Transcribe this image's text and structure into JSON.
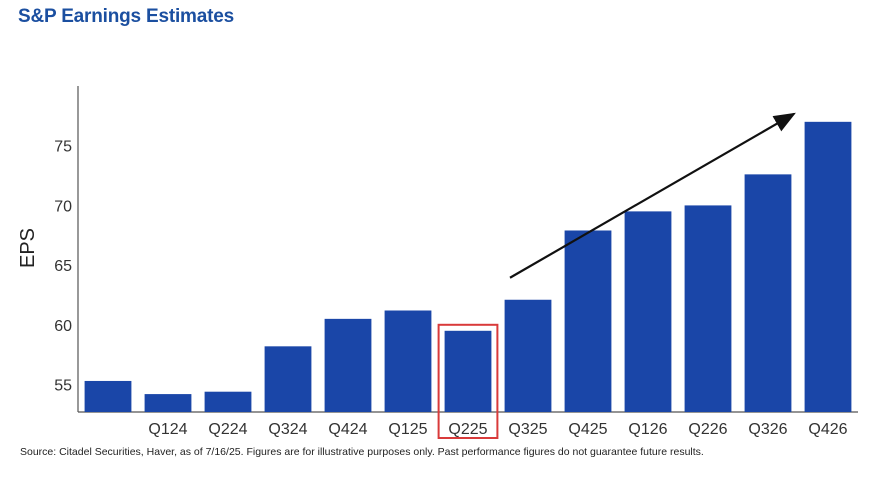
{
  "header": {
    "title": "S&P Earnings Estimates"
  },
  "footer": {
    "source": "Source: Citadel Securities, Haver, as of 7/16/25. Figures are for illustrative purposes only. Past performance figures do not guarantee future results."
  },
  "colors": {
    "bar": "#1a46a8",
    "highlight": "#d93a3a",
    "arrow": "#111111",
    "axis": "#555555"
  },
  "chart_data": {
    "type": "bar",
    "title": "S&P Earnings Estimates",
    "xlabel": "",
    "ylabel": "EPS",
    "categories": [
      "",
      "Q124",
      "Q224",
      "Q324",
      "Q424",
      "Q125",
      "Q225",
      "Q325",
      "Q425",
      "Q126",
      "Q226",
      "Q326",
      "Q426"
    ],
    "values": [
      55.3,
      54.2,
      54.4,
      58.2,
      60.5,
      61.2,
      59.5,
      62.1,
      67.9,
      69.5,
      70.0,
      72.6,
      77.0
    ],
    "yticks": [
      55,
      60,
      65,
      70,
      75
    ],
    "ylim": [
      52.7,
      80
    ],
    "highlight_category": "Q225",
    "trend_arrow": {
      "from_category": "Q325",
      "to_category": "Q426"
    },
    "grid": false,
    "legend": "none"
  }
}
